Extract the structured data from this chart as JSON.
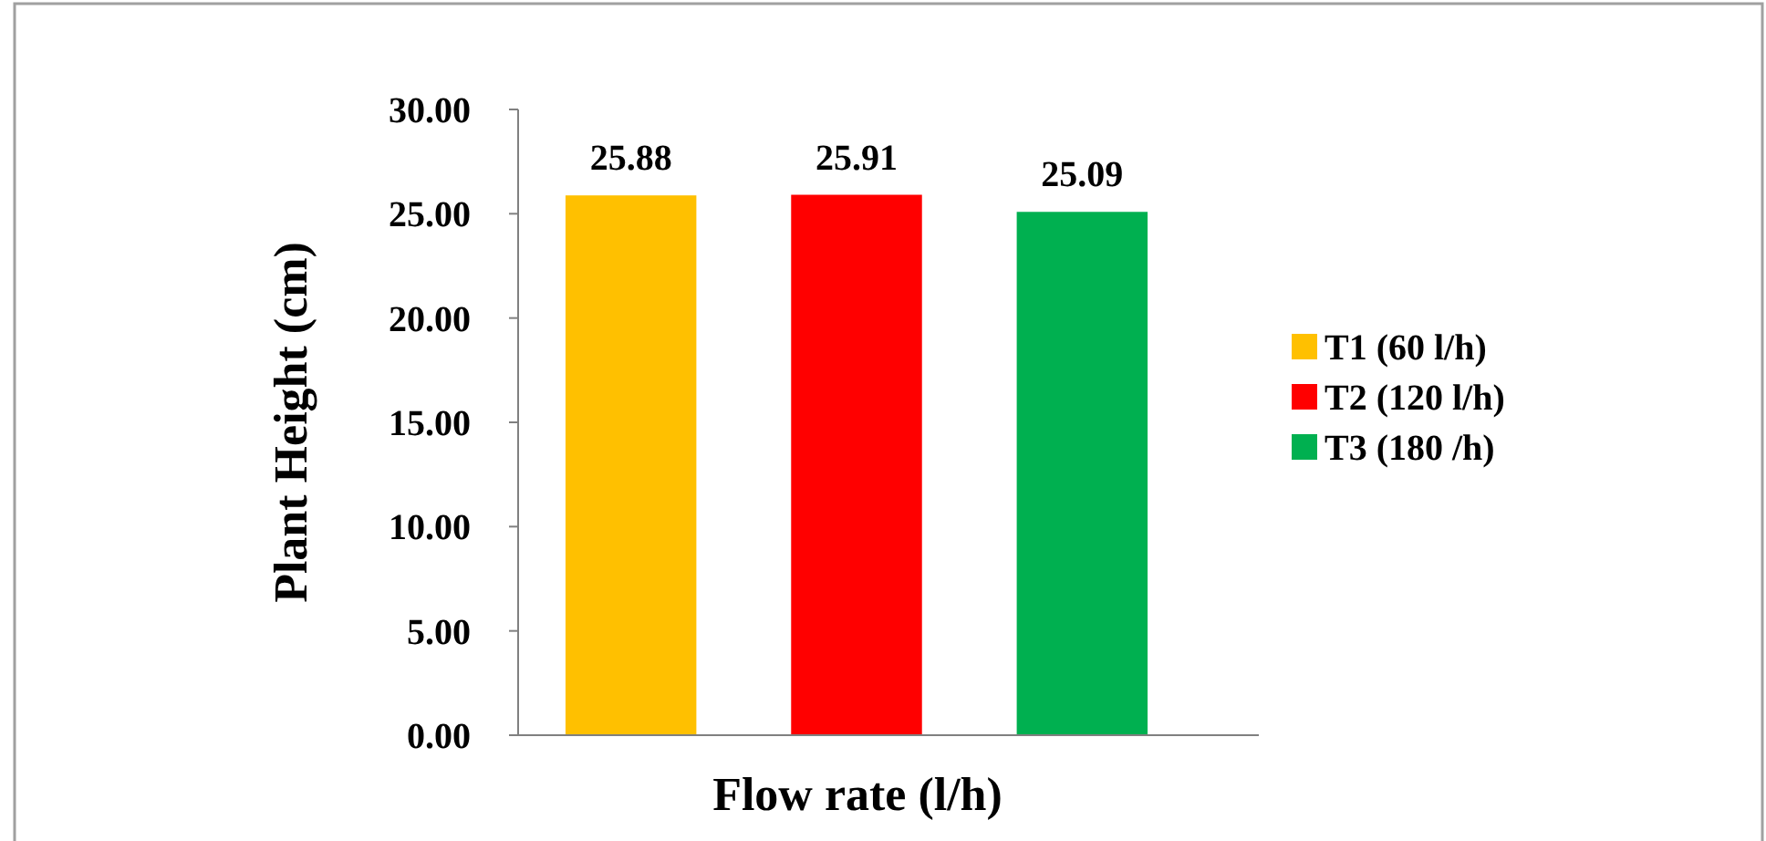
{
  "chart_data": {
    "type": "bar",
    "xlabel": "Flow rate (l/h)",
    "ylabel": "Plant Height (cm)",
    "categories": [
      null
    ],
    "series": [
      {
        "name": "T1 (60 l/h)",
        "color": "#ffc000",
        "values": [
          25.88
        ]
      },
      {
        "name": "T2 (120 l/h)",
        "color": "#ff0000",
        "values": [
          25.91
        ]
      },
      {
        "name": "T3 (180 /h)",
        "color": "#00b050",
        "values": [
          25.09
        ]
      }
    ],
    "ylim": [
      0,
      30
    ],
    "yticks": [
      {
        "value": 0,
        "label": "0.00"
      },
      {
        "value": 5,
        "label": "5.00"
      },
      {
        "value": 10,
        "label": "10.00"
      },
      {
        "value": 15,
        "label": "15.00"
      },
      {
        "value": 20,
        "label": "20.00"
      },
      {
        "value": 25,
        "label": "25.00"
      },
      {
        "value": 30,
        "label": "30.00"
      }
    ],
    "data_labels": true,
    "legend": "right",
    "grid": false
  }
}
